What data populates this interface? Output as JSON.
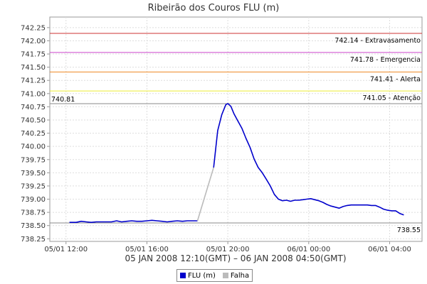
{
  "chart_data": {
    "type": "line",
    "title": "Ribeirão dos Couros FLU (m)",
    "xlabel": "05 JAN 2008 12:10(GMT) – 06 JAN 2008 04:50(GMT)",
    "ylabel": "",
    "ylim": [
      738.2,
      742.45
    ],
    "y_ticks": [
      "738.25",
      "738.50",
      "738.75",
      "739.00",
      "739.25",
      "739.50",
      "739.75",
      "740.00",
      "740.25",
      "740.50",
      "740.75",
      "741.00",
      "741.25",
      "741.50",
      "741.75",
      "742.00",
      "742.25"
    ],
    "x_ticks": [
      {
        "label": "05/01 12:00",
        "hours": 0
      },
      {
        "label": "05/01 16:00",
        "hours": 4
      },
      {
        "label": "05/01 20:00",
        "hours": 8
      },
      {
        "label": "06/01 00:00",
        "hours": 12
      },
      {
        "label": "06/01 04:00",
        "hours": 16
      }
    ],
    "xlim_hours": [
      -0.8,
      17.6
    ],
    "grid": true,
    "thresholds": [
      {
        "label": "742.14 - Extravasamento",
        "value": 742.14,
        "color": "#cc3333"
      },
      {
        "label": "741.78 - Emergencia",
        "value": 741.78,
        "color": "#cc44cc"
      },
      {
        "label": "741.41 - Alerta",
        "value": 741.41,
        "color": "#ee8822"
      },
      {
        "label": "741.05 - Atenção",
        "value": 741.05,
        "color": "#eeee33"
      }
    ],
    "max_marker": {
      "label": "740.81",
      "value": 740.81,
      "color": "#888888"
    },
    "min_marker": {
      "label": "738.55",
      "value": 738.55,
      "color": "#888888"
    },
    "series": [
      {
        "name": "FLU (m)",
        "color": "#0000cc",
        "x": [
          0.17,
          0.5,
          0.75,
          1.0,
          1.25,
          1.5,
          1.75,
          2.0,
          2.25,
          2.5,
          2.75,
          3.0,
          3.25,
          3.5,
          3.75,
          4.0,
          4.25,
          4.5,
          4.75,
          5.0,
          5.25,
          5.5,
          5.75,
          6.0,
          6.25,
          6.5
        ],
        "y": [
          738.56,
          738.56,
          738.58,
          738.57,
          738.56,
          738.57,
          738.57,
          738.57,
          738.57,
          738.59,
          738.57,
          738.58,
          738.59,
          738.58,
          738.58,
          738.59,
          738.6,
          738.59,
          738.58,
          738.57,
          738.58,
          738.59,
          738.58,
          738.59,
          738.59,
          738.59
        ]
      },
      {
        "name": "Falha",
        "color": "#bbbbbb",
        "x": [
          6.5,
          6.9,
          7.3
        ],
        "y": [
          738.59,
          739.1,
          739.6
        ]
      },
      {
        "name": "",
        "color": "#0000cc",
        "x": [
          7.3,
          7.5,
          7.7,
          7.9,
          8.0,
          8.15,
          8.3,
          8.5,
          8.7,
          8.9,
          9.1,
          9.3,
          9.5,
          9.7,
          9.9,
          10.1,
          10.3,
          10.5,
          10.7,
          10.9,
          11.1,
          11.3,
          11.5,
          11.7,
          11.9,
          12.1,
          12.3,
          12.5,
          12.7,
          12.9,
          13.1,
          13.3,
          13.5,
          13.7,
          13.9,
          14.1,
          14.3,
          14.5,
          14.7,
          14.9,
          15.1,
          15.3,
          15.5,
          15.7,
          15.9,
          16.1,
          16.3,
          16.5,
          16.7
        ],
        "y": [
          739.6,
          740.3,
          740.6,
          740.79,
          740.81,
          740.76,
          740.62,
          740.48,
          740.34,
          740.15,
          739.98,
          739.76,
          739.6,
          739.5,
          739.38,
          739.25,
          739.09,
          739.0,
          738.97,
          738.98,
          738.96,
          738.98,
          738.98,
          738.99,
          739.0,
          739.01,
          738.99,
          738.97,
          738.94,
          738.9,
          738.87,
          738.85,
          738.83,
          738.86,
          738.88,
          738.89,
          738.89,
          738.89,
          738.89,
          738.89,
          738.88,
          738.88,
          738.85,
          738.81,
          738.79,
          738.78,
          738.78,
          738.73,
          738.7
        ]
      }
    ],
    "legend": [
      {
        "name": "FLU (m)",
        "color": "#0000cc"
      },
      {
        "name": "Falha",
        "color": "#bbbbbb"
      }
    ]
  }
}
